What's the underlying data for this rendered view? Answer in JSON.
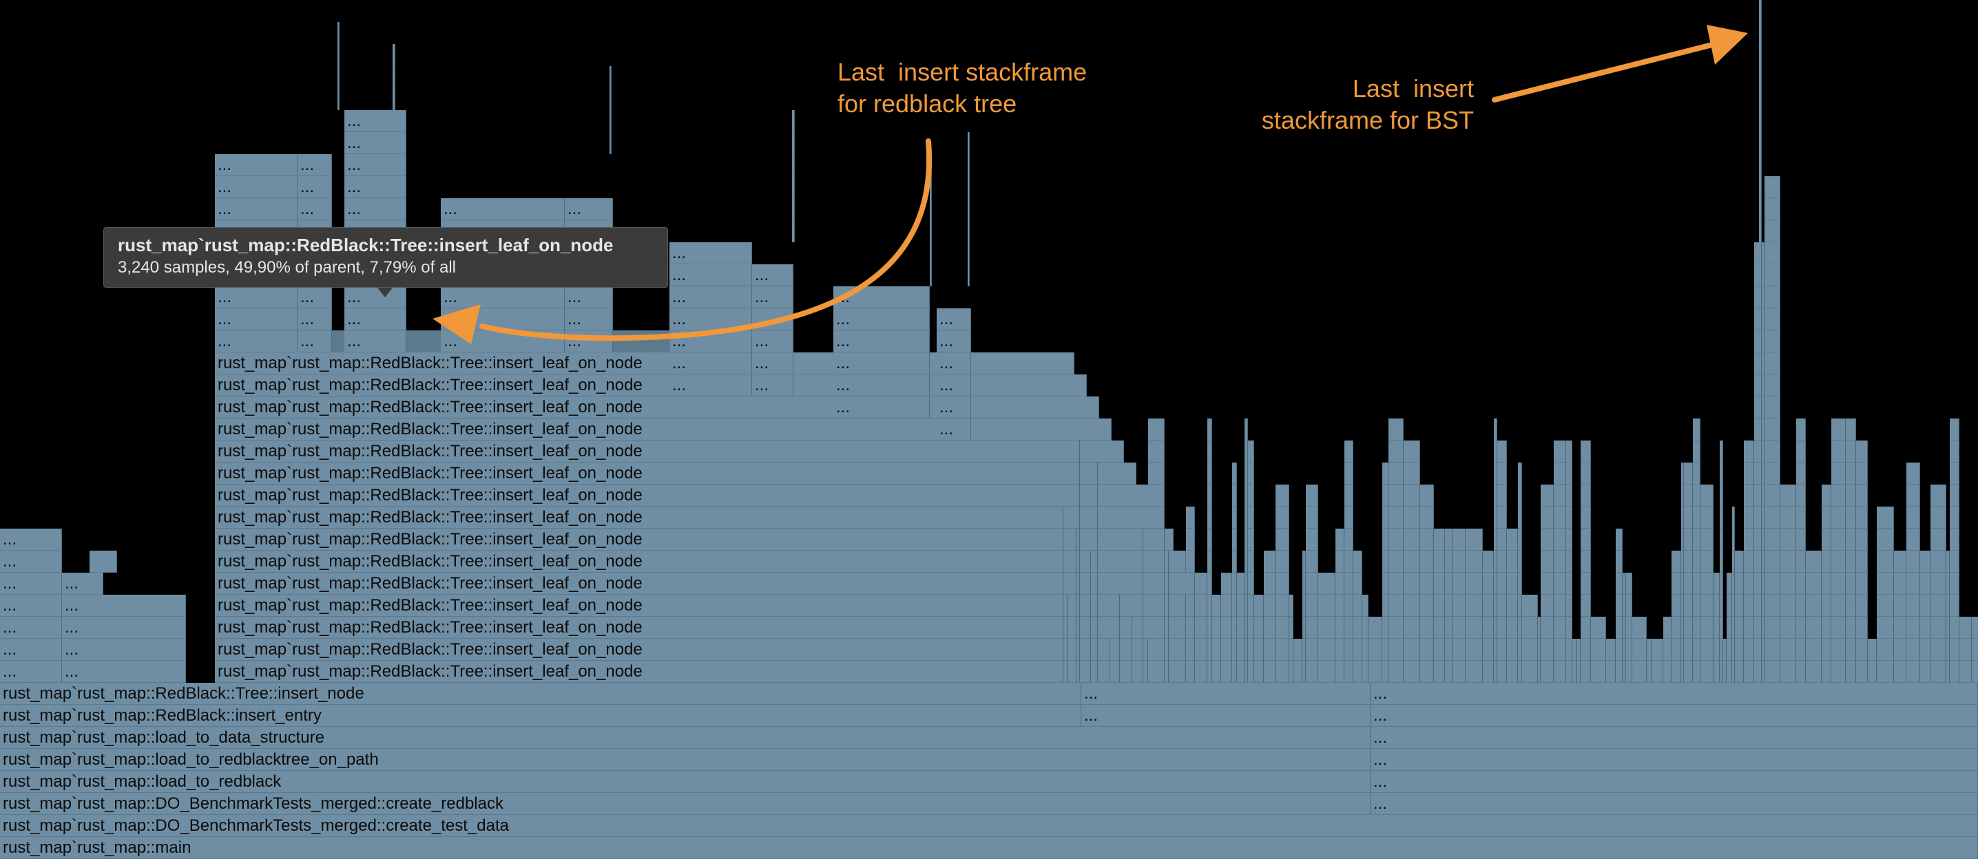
{
  "flamegraph": {
    "row_labels": [
      "rust_map`rust_map::main",
      "rust_map`rust_map::DO_BenchmarkTests_merged::create_test_data",
      "rust_map`rust_map::DO_BenchmarkTests_merged::create_redblack",
      "rust_map`rust_map::load_to_redblack",
      "rust_map`rust_map::load_to_redblacktree_on_path",
      "rust_map`rust_map::load_to_data_structure",
      "rust_map`rust_map::RedBlack::insert_entry",
      "rust_map`rust_map::RedBlack::Tree::insert_node"
    ],
    "repeated_frame_label": "rust_map`rust_map::RedBlack::Tree::insert_leaf_on_node",
    "repeated_frame_count": 15,
    "ellipsis": "...",
    "frame_color": "#6f8ea3",
    "highlight_color": "#5c7a8e"
  },
  "tooltip": {
    "title": "rust_map`rust_map::RedBlack::Tree::insert_leaf_on_node",
    "detail": "3,240 samples, 49,90% of parent, 7,79% of all"
  },
  "annotations": {
    "redblack": "Last  insert stackframe\nfor redblack tree",
    "bst": "Last  insert\nstackframe for BST",
    "color": "#f0983a"
  }
}
